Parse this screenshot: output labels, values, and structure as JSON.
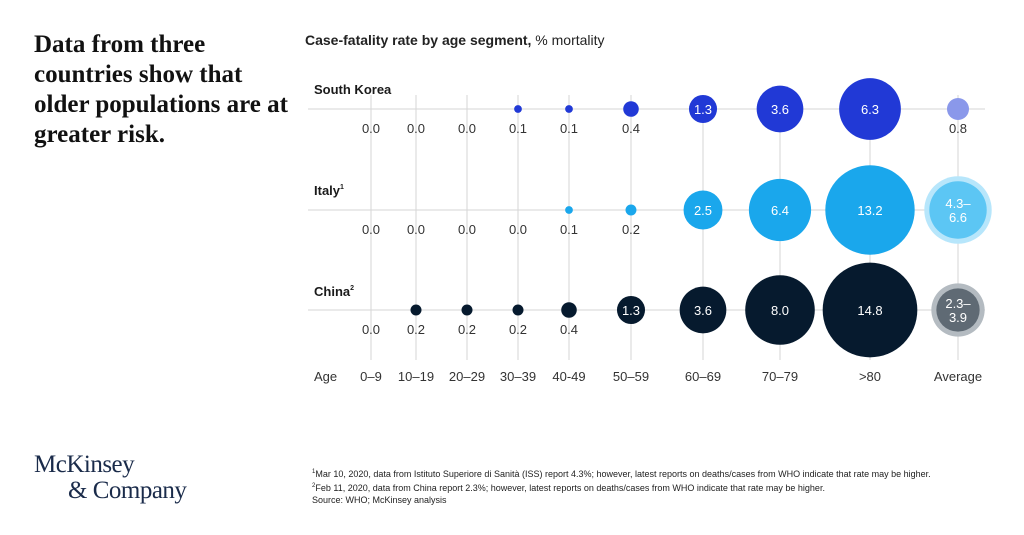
{
  "headline": "Data from three countries show that older populations are at greater risk.",
  "chart_title_bold": "Case-fatality rate by age segment,",
  "chart_title_rest": " % mortality",
  "logo": {
    "line1": "McKinsey",
    "line2": "& Company"
  },
  "footnotes": [
    {
      "mark": "1",
      "text": "Mar 10, 2020, data from Istituto Superiore di Sanità (ISS) report 4.3%; however, latest reports on deaths/cases from WHO indicate that rate may be higher."
    },
    {
      "mark": "2",
      "text": "Feb 11, 2020, data from China report 2.3%; however, latest reports on deaths/cases from WHO indicate that rate may be higher."
    },
    {
      "mark": "",
      "text": "Source: WHO; McKinsey analysis"
    }
  ],
  "colors": {
    "south_korea": "#2139d6",
    "italy": "#1aa7ec",
    "china": "#061a2e",
    "grid": "#d6d6d6"
  },
  "chart_data": {
    "type": "scatter",
    "title": "Case-fatality rate by age segment, % mortality",
    "xlabel": "Age",
    "categories": [
      "0–9",
      "10–19",
      "20–29",
      "30–39",
      "40-49",
      "50–59",
      "60–69",
      "70–79",
      ">80",
      "Average"
    ],
    "series": [
      {
        "name": "South Korea",
        "sup": "",
        "values": [
          0.0,
          0.0,
          0.0,
          0.1,
          0.1,
          0.4,
          1.3,
          3.6,
          6.3,
          0.8
        ],
        "labels": [
          "0.0",
          "0.0",
          "0.0",
          "0.1",
          "0.1",
          "0.4",
          "1.3",
          "3.6",
          "6.3",
          "0.8"
        ],
        "label_inside": [
          false,
          false,
          false,
          false,
          false,
          false,
          true,
          true,
          true,
          false
        ]
      },
      {
        "name": "Italy",
        "sup": "1",
        "values": [
          0.0,
          0.0,
          0.0,
          0.0,
          0.1,
          0.2,
          2.5,
          6.4,
          13.2,
          5.45
        ],
        "labels": [
          "0.0",
          "0.0",
          "0.0",
          "0.0",
          "0.1",
          "0.2",
          "2.5",
          "6.4",
          "13.2",
          "4.3–\n6.6"
        ],
        "label_inside": [
          false,
          false,
          false,
          false,
          false,
          false,
          true,
          true,
          true,
          true
        ]
      },
      {
        "name": "China",
        "sup": "2",
        "values": [
          0.0,
          0.2,
          0.2,
          0.2,
          0.4,
          1.3,
          3.6,
          8.0,
          14.8,
          3.1
        ],
        "labels": [
          "0.0",
          "0.2",
          "0.2",
          "0.2",
          "0.4",
          "1.3",
          "3.6",
          "8.0",
          "14.8",
          "2.3–\n3.9"
        ],
        "label_inside": [
          false,
          false,
          false,
          false,
          false,
          true,
          true,
          true,
          true,
          true
        ]
      }
    ]
  }
}
